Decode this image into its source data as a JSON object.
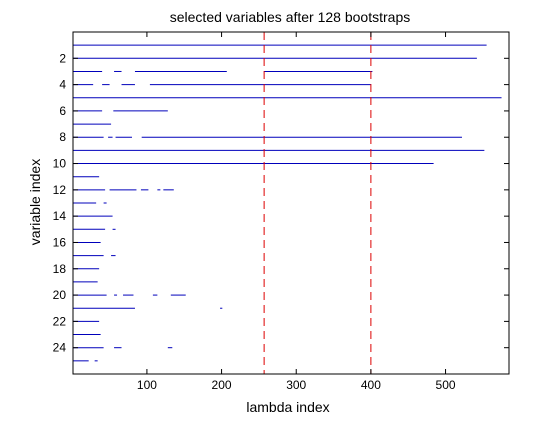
{
  "chart_data": {
    "type": "segments",
    "title": "selected variables after 128 bootstraps",
    "xlabel": "lambda index",
    "ylabel": "variable index",
    "xlim": [
      1,
      585
    ],
    "ylim": [
      26,
      0
    ],
    "xticks": [
      100,
      200,
      300,
      400,
      500
    ],
    "yticks": [
      2,
      4,
      6,
      8,
      10,
      12,
      14,
      16,
      18,
      20,
      22,
      24
    ],
    "grid": false,
    "selection_color": "#0000bb",
    "threshold_color": "#dd0000",
    "thresholds": [
      257,
      400
    ],
    "rows": [
      {
        "var": 1,
        "segments": [
          [
            1,
            555
          ]
        ]
      },
      {
        "var": 2,
        "segments": [
          [
            1,
            542
          ]
        ]
      },
      {
        "var": 3,
        "segments": [
          [
            1,
            40
          ],
          [
            56,
            66
          ],
          [
            84,
            207
          ],
          [
            257,
            402
          ]
        ]
      },
      {
        "var": 4,
        "segments": [
          [
            1,
            28
          ],
          [
            40,
            50
          ],
          [
            66,
            84
          ],
          [
            104,
            400
          ]
        ]
      },
      {
        "var": 5,
        "segments": [
          [
            1,
            575
          ]
        ]
      },
      {
        "var": 6,
        "segments": [
          [
            1,
            40
          ],
          [
            55,
            128
          ]
        ]
      },
      {
        "var": 7,
        "segments": [
          [
            1,
            52
          ]
        ]
      },
      {
        "var": 8,
        "segments": [
          [
            1,
            42
          ],
          [
            48,
            54
          ],
          [
            58,
            80
          ],
          [
            93,
            522
          ]
        ]
      },
      {
        "var": 9,
        "segments": [
          [
            1,
            552
          ]
        ]
      },
      {
        "var": 10,
        "segments": [
          [
            1,
            484
          ]
        ]
      },
      {
        "var": 11,
        "segments": [
          [
            1,
            36
          ]
        ]
      },
      {
        "var": 12,
        "segments": [
          [
            1,
            44
          ],
          [
            50,
            86
          ],
          [
            92,
            102
          ],
          [
            114,
            118
          ],
          [
            122,
            136
          ]
        ]
      },
      {
        "var": 13,
        "segments": [
          [
            1,
            32
          ],
          [
            42,
            46
          ]
        ]
      },
      {
        "var": 14,
        "segments": [
          [
            1,
            54
          ]
        ]
      },
      {
        "var": 15,
        "segments": [
          [
            1,
            44
          ],
          [
            54,
            58
          ]
        ]
      },
      {
        "var": 16,
        "segments": [
          [
            1,
            38
          ]
        ]
      },
      {
        "var": 17,
        "segments": [
          [
            1,
            42
          ],
          [
            52,
            58
          ]
        ]
      },
      {
        "var": 18,
        "segments": [
          [
            1,
            36
          ]
        ]
      },
      {
        "var": 19,
        "segments": [
          [
            1,
            34
          ]
        ]
      },
      {
        "var": 20,
        "segments": [
          [
            1,
            46
          ],
          [
            56,
            60
          ],
          [
            68,
            82
          ],
          [
            108,
            114
          ],
          [
            132,
            152
          ]
        ]
      },
      {
        "var": 21,
        "segments": [
          [
            1,
            84
          ],
          [
            198,
            201
          ]
        ]
      },
      {
        "var": 22,
        "segments": [
          [
            1,
            36
          ]
        ]
      },
      {
        "var": 23,
        "segments": [
          [
            1,
            38
          ]
        ]
      },
      {
        "var": 24,
        "segments": [
          [
            1,
            42
          ],
          [
            56,
            66
          ],
          [
            128,
            134
          ]
        ]
      },
      {
        "var": 25,
        "segments": [
          [
            1,
            22
          ],
          [
            30,
            34
          ]
        ]
      }
    ]
  }
}
